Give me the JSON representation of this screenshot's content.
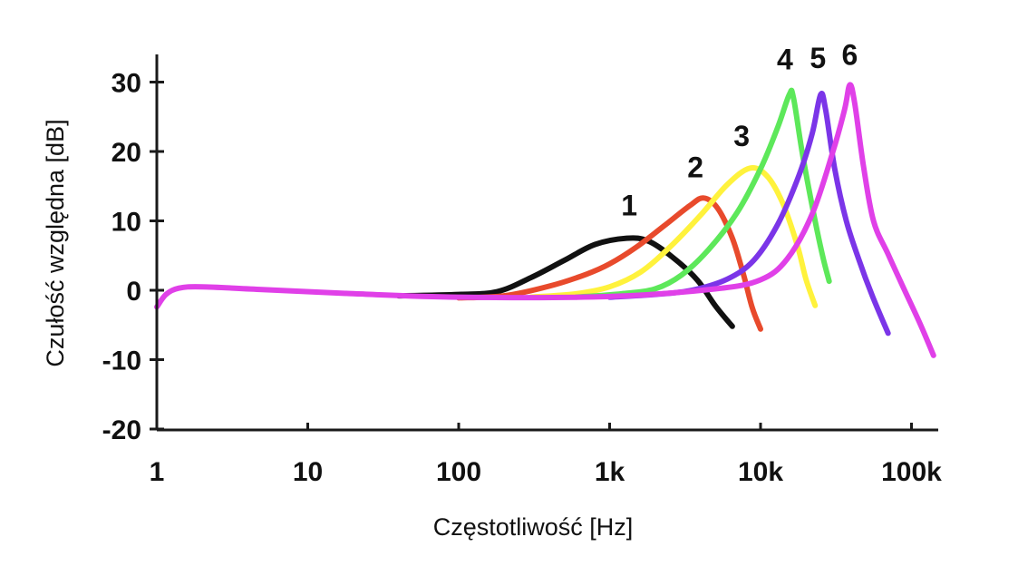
{
  "chart_data": {
    "type": "line",
    "xlabel": "Częstotliwość [Hz]",
    "ylabel": "Czułość względna [dB]",
    "x_scale": "log",
    "xlim": [
      1,
      150000
    ],
    "ylim": [
      -20,
      34
    ],
    "grid": false,
    "x_ticks": [
      {
        "value": 1,
        "label": "1"
      },
      {
        "value": 10,
        "label": "10"
      },
      {
        "value": 100,
        "label": "100"
      },
      {
        "value": 1000,
        "label": "1k"
      },
      {
        "value": 10000,
        "label": "10k"
      },
      {
        "value": 100000,
        "label": "100k"
      }
    ],
    "y_ticks": [
      {
        "value": 30,
        "label": "30"
      },
      {
        "value": 20,
        "label": "20"
      },
      {
        "value": 10,
        "label": "10"
      },
      {
        "value": 0,
        "label": "0"
      },
      {
        "value": -10,
        "label": "-10"
      },
      {
        "value": -20,
        "label": "-20"
      }
    ],
    "series": [
      {
        "label": "1",
        "color": "#111111",
        "label_at": [
          1350,
          10.8
        ],
        "points": [
          [
            40,
            -0.8
          ],
          [
            100,
            -0.6
          ],
          [
            180,
            -0.2
          ],
          [
            300,
            1.8
          ],
          [
            500,
            4.3
          ],
          [
            800,
            6.6
          ],
          [
            1300,
            7.5
          ],
          [
            1800,
            7.1
          ],
          [
            2600,
            4.8
          ],
          [
            3800,
            1.5
          ],
          [
            5000,
            -2.2
          ],
          [
            6500,
            -5.2
          ]
        ]
      },
      {
        "label": "2",
        "color": "#e84a2c",
        "label_at": [
          3700,
          16.3
        ],
        "points": [
          [
            100,
            -1.1
          ],
          [
            200,
            -0.8
          ],
          [
            400,
            0.6
          ],
          [
            700,
            2.3
          ],
          [
            1000,
            3.8
          ],
          [
            1500,
            6.2
          ],
          [
            2300,
            9.3
          ],
          [
            3400,
            12.2
          ],
          [
            4200,
            13.3
          ],
          [
            5200,
            11.8
          ],
          [
            6500,
            7.5
          ],
          [
            7700,
            2.3
          ],
          [
            8800,
            -2.5
          ],
          [
            10000,
            -5.6
          ]
        ]
      },
      {
        "label": "3",
        "color": "#fff23c",
        "label_at": [
          7500,
          20.8
        ],
        "points": [
          [
            300,
            -1
          ],
          [
            600,
            -0.5
          ],
          [
            1000,
            0.5
          ],
          [
            1600,
            2.6
          ],
          [
            2500,
            6.2
          ],
          [
            4000,
            10.8
          ],
          [
            6000,
            15.2
          ],
          [
            8500,
            17.6
          ],
          [
            11000,
            16.5
          ],
          [
            14000,
            12.6
          ],
          [
            17500,
            6.5
          ],
          [
            20000,
            1.6
          ],
          [
            23000,
            -2.2
          ]
        ]
      },
      {
        "label": "4",
        "color": "#5de85a",
        "label_at": [
          14500,
          31.8
        ],
        "points": [
          [
            600,
            -1
          ],
          [
            1200,
            -0.5
          ],
          [
            2000,
            0.2
          ],
          [
            3000,
            2.2
          ],
          [
            4500,
            5.8
          ],
          [
            7000,
            11.2
          ],
          [
            10000,
            17.5
          ],
          [
            13000,
            23.5
          ],
          [
            15500,
            28.2
          ],
          [
            16500,
            27.8
          ],
          [
            19000,
            19.5
          ],
          [
            23000,
            10
          ],
          [
            26000,
            4.6
          ],
          [
            28500,
            1.3
          ]
        ]
      },
      {
        "label": "5",
        "color": "#7b35e8",
        "label_at": [
          24000,
          32
        ],
        "points": [
          [
            1000,
            -1
          ],
          [
            2000,
            -0.6
          ],
          [
            3500,
            0
          ],
          [
            6000,
            1.6
          ],
          [
            9000,
            4.3
          ],
          [
            13000,
            9.5
          ],
          [
            18000,
            16.6
          ],
          [
            22000,
            22.6
          ],
          [
            25000,
            28.2
          ],
          [
            27000,
            26
          ],
          [
            31000,
            17.5
          ],
          [
            37000,
            10
          ],
          [
            45000,
            4.3
          ],
          [
            55000,
            -0.8
          ],
          [
            70000,
            -6.2
          ]
        ]
      },
      {
        "label": "6",
        "color": "#e040e8",
        "label_at": [
          39000,
          32.5
        ],
        "points": [
          [
            1,
            -2.4
          ],
          [
            1.15,
            -0.6
          ],
          [
            1.4,
            0.3
          ],
          [
            2,
            0.5
          ],
          [
            5,
            0.1
          ],
          [
            20,
            -0.5
          ],
          [
            100,
            -1
          ],
          [
            1000,
            -0.9
          ],
          [
            5000,
            0.2
          ],
          [
            10000,
            1.5
          ],
          [
            15000,
            4.5
          ],
          [
            22000,
            11
          ],
          [
            30000,
            19.8
          ],
          [
            36000,
            26
          ],
          [
            39000,
            29.6
          ],
          [
            42000,
            27
          ],
          [
            48000,
            18
          ],
          [
            56000,
            10
          ],
          [
            70000,
            5.2
          ],
          [
            90000,
            0
          ],
          [
            115000,
            -5
          ],
          [
            140000,
            -9.4
          ]
        ]
      }
    ]
  }
}
